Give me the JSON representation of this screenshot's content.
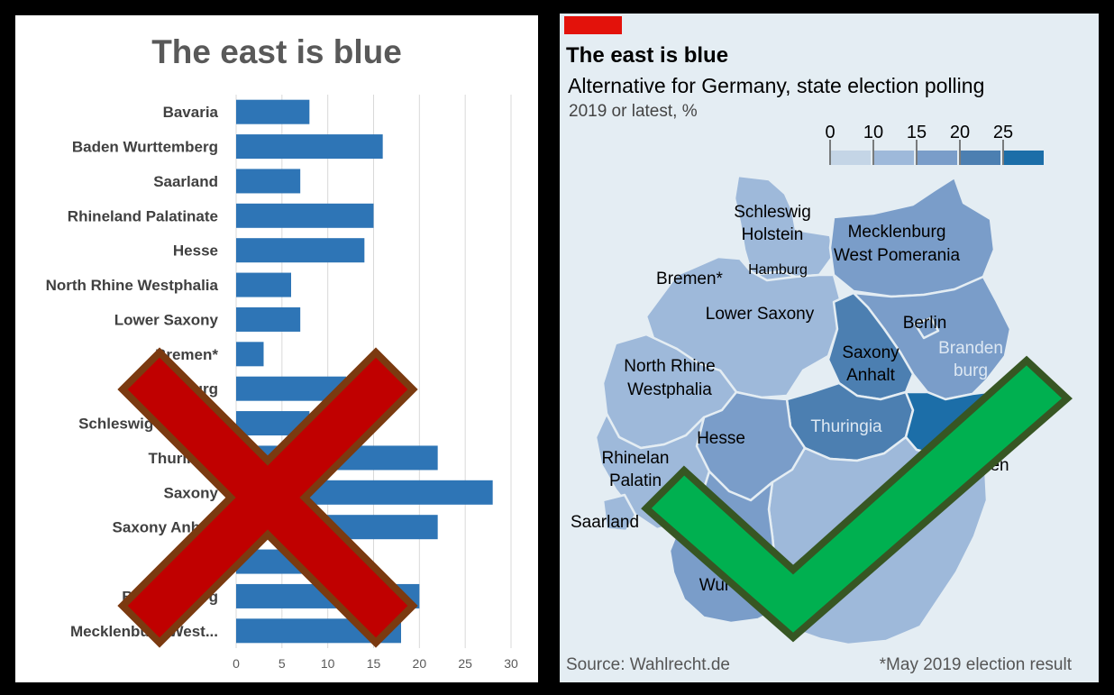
{
  "left": {
    "chart_data": {
      "type": "bar",
      "title": "The east is blue",
      "orientation": "horizontal",
      "categories": [
        "Bavaria",
        "Baden Wurttemberg",
        "Saarland",
        "Rhineland Palatinate",
        "Hesse",
        "North Rhine Westphalia",
        "Lower Saxony",
        "Bremen*",
        "Hamburg",
        "Schleswig Holstein",
        "Thuringia",
        "Saxony",
        "Saxony Anhalt",
        "Berlin",
        "Brandenburg",
        "Mecklenburg West..."
      ],
      "values": [
        8,
        16,
        7,
        15,
        14,
        6,
        7,
        3,
        12,
        8,
        22,
        28,
        22,
        8,
        20,
        18
      ],
      "xlim": [
        0,
        30
      ],
      "xticks": [
        "0",
        "5",
        "10",
        "15",
        "20",
        "25",
        "30"
      ],
      "bar_color": "#2e75b6",
      "grid": true
    },
    "overlay": "red-cross"
  },
  "right": {
    "title": "The east is blue",
    "subtitle": "Alternative for Germany, state election polling",
    "unit_line": "2019 or latest, %",
    "legend": {
      "labels": [
        "0",
        "10",
        "15",
        "20",
        "25"
      ],
      "colors": [
        "#c4d5e6",
        "#9eb9da",
        "#7a9dc9",
        "#4c7fb1",
        "#1c6ea8"
      ]
    },
    "source": "Source: Wahlrecht.de",
    "note": "*May 2019 election result",
    "states": [
      "Schleswig Holstein",
      "Hamburg",
      "Mecklenburg West Pomerania",
      "Bremen*",
      "Lower Saxony",
      "Berlin",
      "Brandenburg",
      "Saxony Anhalt",
      "North Rhine Westphalia",
      "Thuringia",
      "Hesse",
      "Saxony",
      "Rhineland Palatinate",
      "Saarland",
      "Bavaria",
      "Baden Wurttemberg"
    ],
    "state_labels": [
      {
        "text": "Schleswig",
        "color": "#000"
      },
      {
        "text": "Holstein",
        "color": "#000"
      },
      {
        "text": "Mecklenburg",
        "color": "#000"
      },
      {
        "text": "West Pomerania",
        "color": "#000"
      },
      {
        "text": "Hamburg",
        "color": "#000"
      },
      {
        "text": "Bremen*",
        "color": "#000"
      },
      {
        "text": "Lower Saxony",
        "color": "#000"
      },
      {
        "text": "Berlin",
        "color": "#000"
      },
      {
        "text": "Branden",
        "color": "#dde8f3"
      },
      {
        "text": "burg",
        "color": "#dde8f3"
      },
      {
        "text": "Saxony",
        "color": "#000"
      },
      {
        "text": "Anhalt",
        "color": "#000"
      },
      {
        "text": "North Rhine",
        "color": "#000"
      },
      {
        "text": "Westphalia",
        "color": "#000"
      },
      {
        "text": "Thuringia",
        "color": "#dde8f3"
      },
      {
        "text": "Hesse",
        "color": "#000"
      },
      {
        "text": "Rhinelan",
        "color": "#000"
      },
      {
        "text": "Palatin",
        "color": "#000"
      },
      {
        "text": "Saarland",
        "color": "#000"
      },
      {
        "text": "sden",
        "color": "#000"
      },
      {
        "text": "a",
        "color": "#000"
      },
      {
        "text": "Wur",
        "color": "#000"
      }
    ],
    "overlay": "green-check"
  }
}
